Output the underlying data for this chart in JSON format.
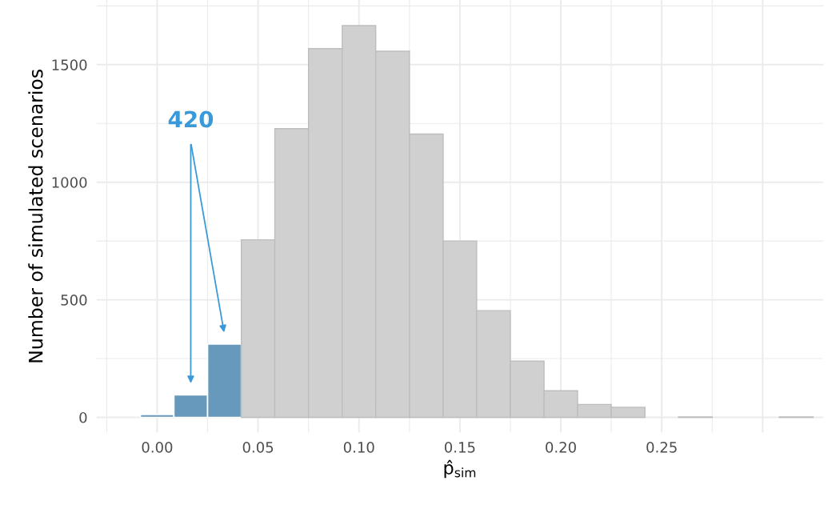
{
  "chart_data": {
    "type": "histogram",
    "xlabel": "p̂$_{sim}$",
    "ylabel": "Number of simulated scenarios",
    "bins": [
      -0.0083,
      0.0083,
      0.025,
      0.0417,
      0.0583,
      0.075,
      0.0917,
      0.1083,
      0.125,
      0.1417,
      0.1583,
      0.175,
      0.1917,
      0.2083,
      0.225,
      0.2417,
      0.2583,
      0.275,
      0.2917,
      0.3083,
      0.325
    ],
    "values": [
      12,
      96,
      312,
      755,
      1228,
      1568,
      1666,
      1557,
      1205,
      750,
      454,
      239,
      113,
      55,
      43,
      0,
      2,
      0,
      0,
      2
    ],
    "colors": [
      "#6699bb",
      "#6699bb",
      "#6699bb",
      "#d0d0d0",
      "#d0d0d0",
      "#d0d0d0",
      "#d0d0d0",
      "#d0d0d0",
      "#d0d0d0",
      "#d0d0d0",
      "#d0d0d0",
      "#d0d0d0",
      "#d0d0d0",
      "#d0d0d0",
      "#d0d0d0",
      "#d0d0d0",
      "#d0d0d0",
      "#d0d0d0",
      "#d0d0d0",
      "#d0d0d0"
    ],
    "xlim": [
      -0.03,
      0.33
    ],
    "ylim": [
      -65,
      1775
    ],
    "xticks": [
      {
        "value": 0,
        "label": "0.00"
      },
      0.05,
      {
        "value": 0.1,
        "label": "0.10"
      },
      0.15,
      {
        "value": 0.2,
        "label": "0.20"
      },
      0.25,
      {
        "value": 0.3,
        "label": null
      }
    ],
    "yticks": [
      0,
      500,
      1000,
      1500
    ],
    "grid": true,
    "annotations": [
      "420"
    ]
  }
}
